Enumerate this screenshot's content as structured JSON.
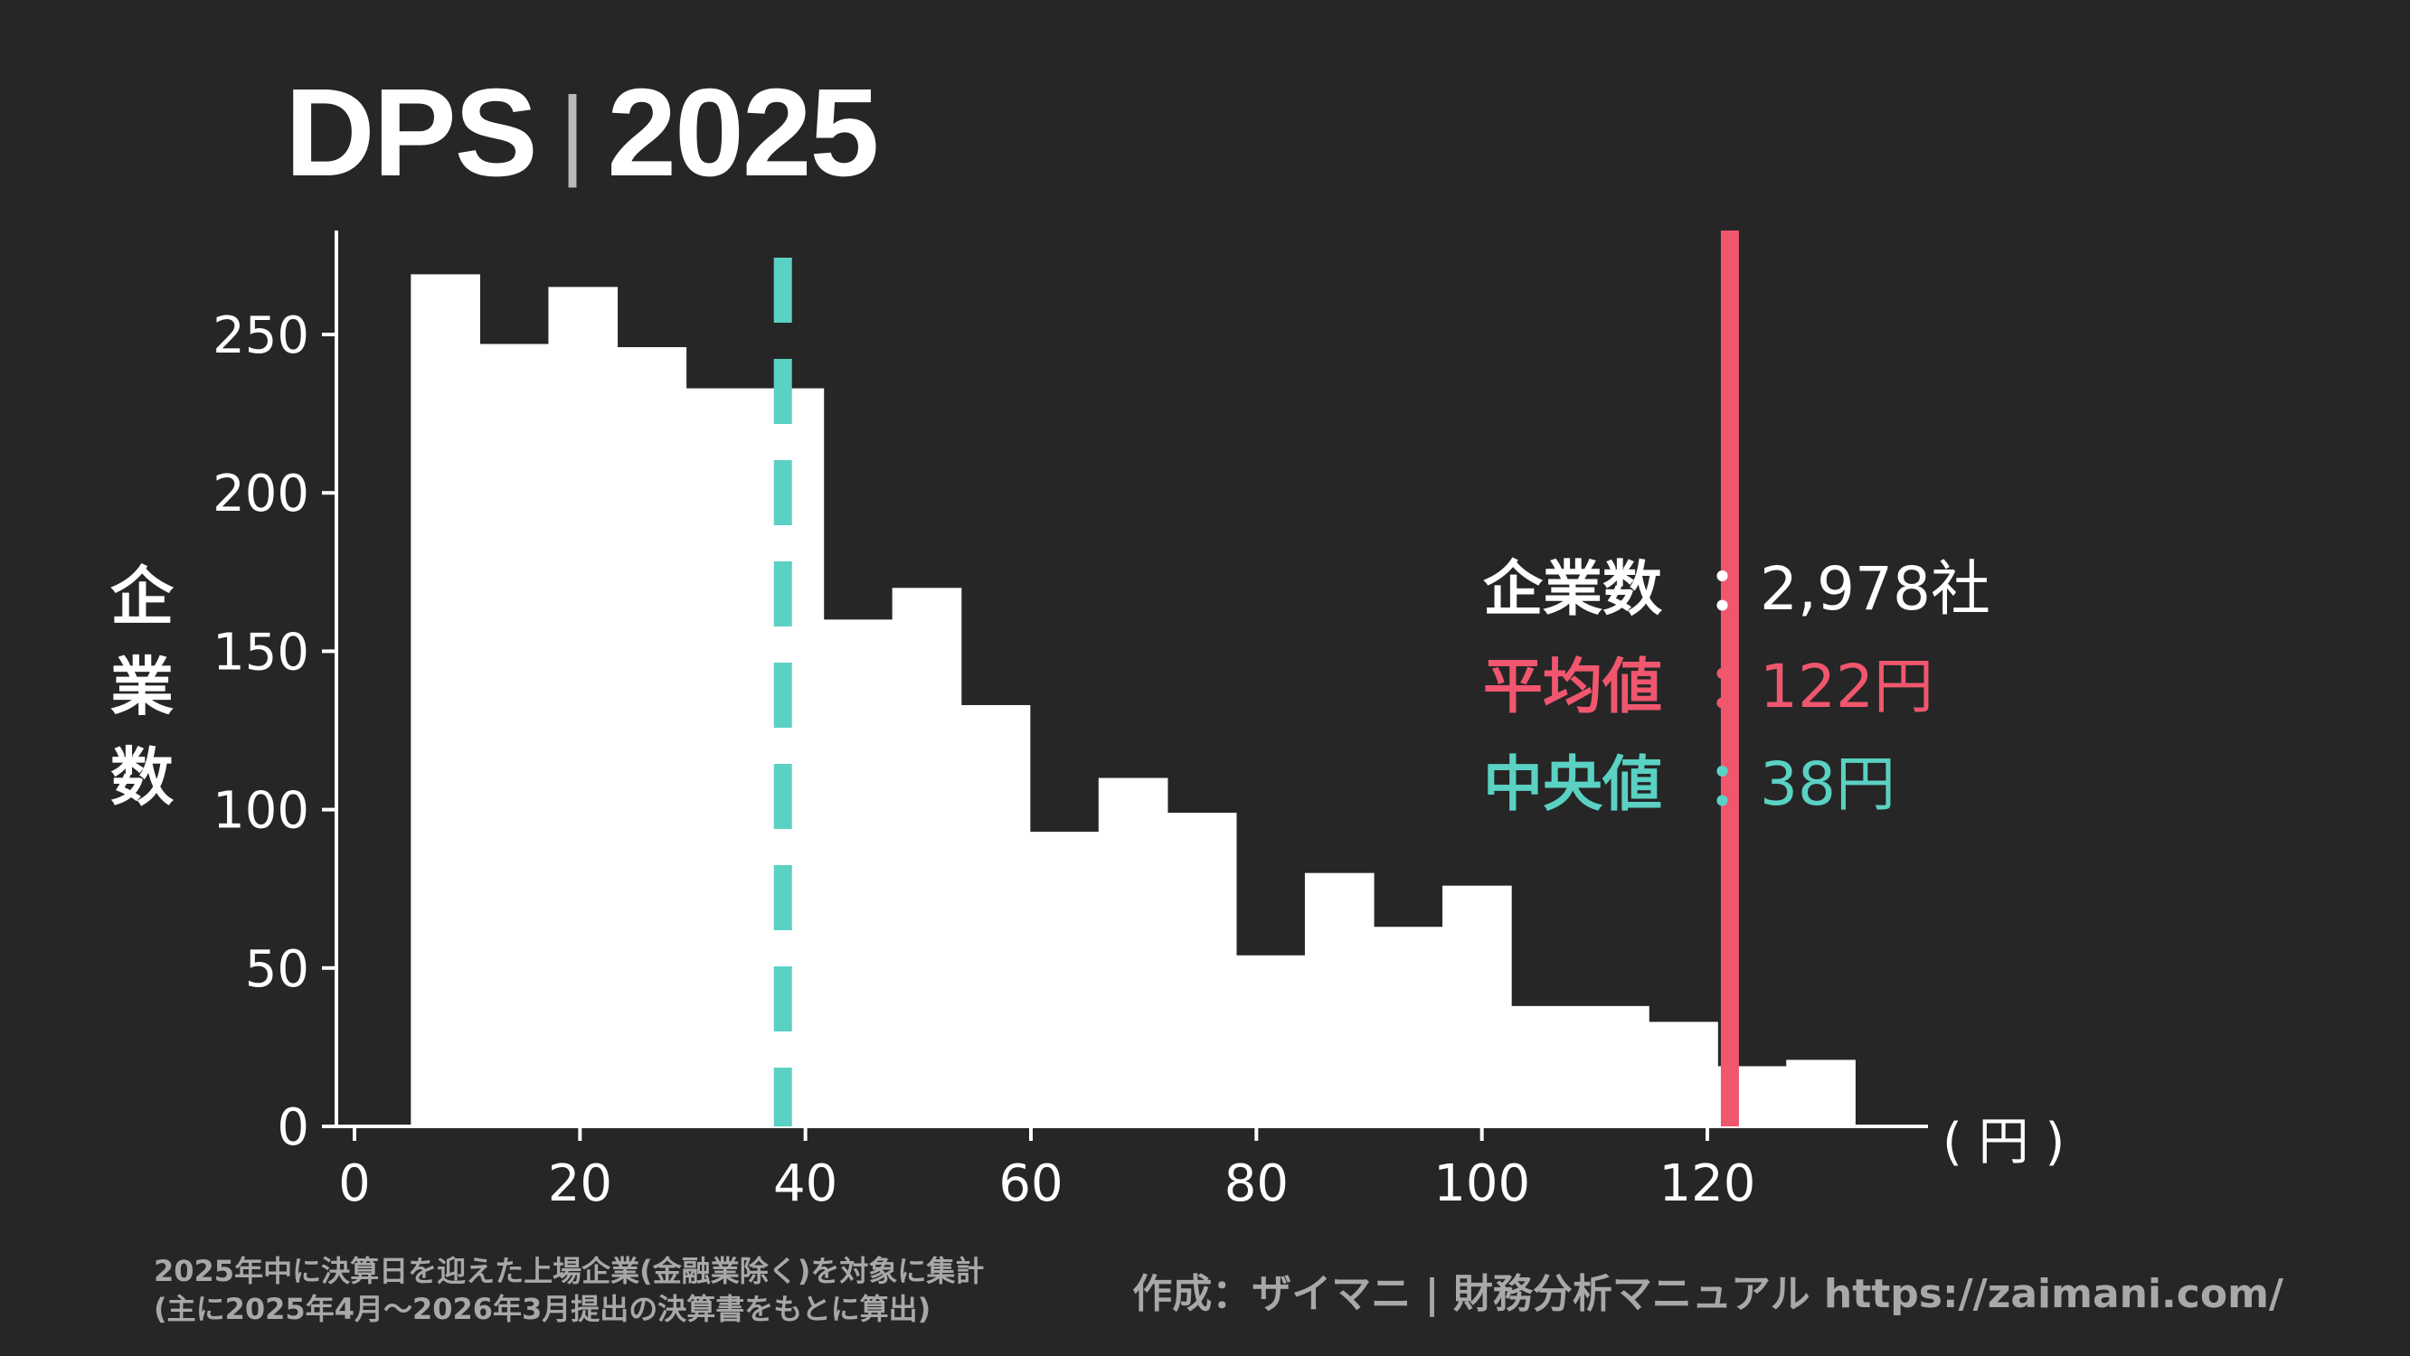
{
  "title": {
    "main": "DPS",
    "separator": "|",
    "year": "2025"
  },
  "ylabel_chars": [
    "企",
    "業",
    "数"
  ],
  "x_unit": "( 円 )",
  "stats": {
    "count": {
      "label": "企業数",
      "colon": "：",
      "value": "2,978社",
      "color": "#ffffff"
    },
    "mean": {
      "label": "平均値",
      "colon": "：",
      "value": "122円",
      "color": "#f0566e"
    },
    "median": {
      "label": "中央値",
      "colon": "：",
      "value": "38円",
      "color": "#5ad1c3"
    }
  },
  "footnote": {
    "line1": "2025年中に決算日を迎えた上場企業(金融業除く)を対象に集計",
    "line2": "(主に2025年4月〜2026年3月提出の決算書をもとに算出)"
  },
  "credit": "作成：ザイマニ | 財務分析マニュアル https://zaimani.com/",
  "colors": {
    "background": "#262626",
    "bars": "#ffffff",
    "mean_line": "#f0566e",
    "median_line": "#5ad1c3",
    "text": "#ffffff",
    "muted": "#a8a8a8"
  },
  "chart_data": {
    "type": "bar",
    "xlabel": "( 円 )",
    "ylabel": "企業数",
    "xlim": [
      -2,
      140
    ],
    "ylim": [
      0,
      285
    ],
    "xticks": [
      0,
      20,
      40,
      60,
      80,
      100,
      120
    ],
    "yticks": [
      0,
      50,
      100,
      150,
      200,
      250
    ],
    "bin_width": 6.1,
    "bin_start": 5,
    "values": [
      269,
      247,
      265,
      246,
      233,
      233,
      160,
      170,
      133,
      93,
      110,
      99,
      54,
      80,
      63,
      76,
      38,
      38,
      33,
      19,
      21
    ],
    "mean": 122,
    "median": 38,
    "grid": false
  }
}
